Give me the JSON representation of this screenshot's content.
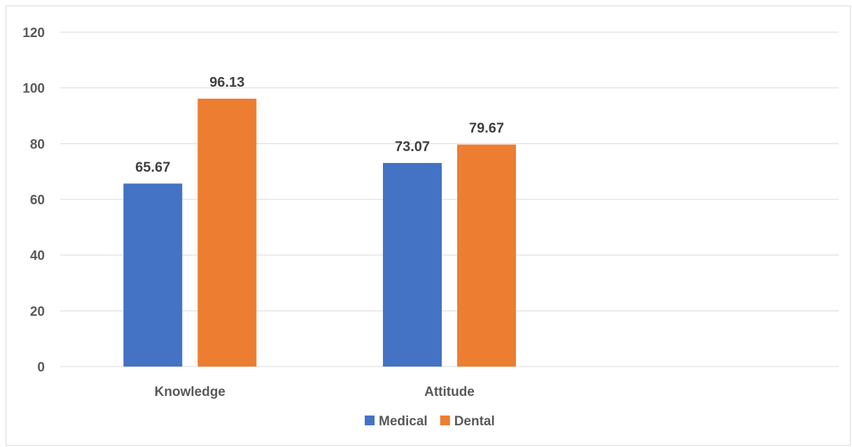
{
  "chart_data": {
    "type": "bar",
    "categories": [
      "Knowledge",
      "Attitude"
    ],
    "series": [
      {
        "name": "Medical",
        "color": "#4472C4",
        "values": [
          65.67,
          73.07
        ]
      },
      {
        "name": "Dental",
        "color": "#ED7D31",
        "values": [
          96.13,
          79.67
        ]
      }
    ],
    "data_labels": [
      [
        "65.67",
        "73.07"
      ],
      [
        "96.13",
        "79.67"
      ]
    ],
    "ylim": [
      0,
      120
    ],
    "yticks": [
      0,
      20,
      40,
      60,
      80,
      100,
      120
    ],
    "grid": true,
    "legend_position": "bottom",
    "title": "",
    "xlabel": "",
    "ylabel": ""
  }
}
